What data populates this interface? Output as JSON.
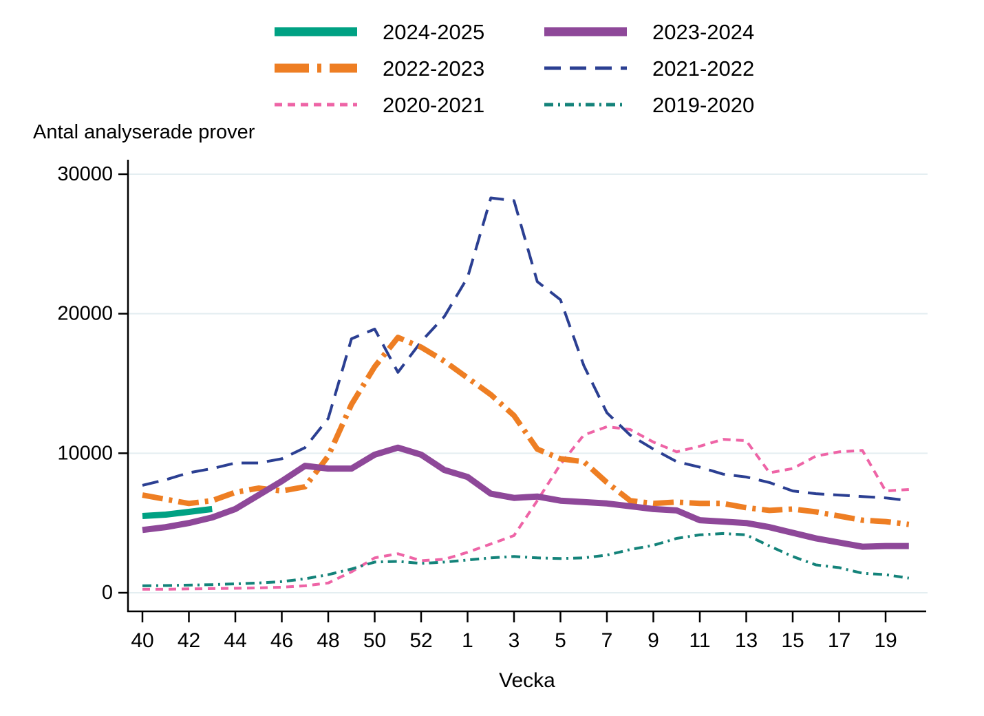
{
  "title": "Antal analyserade prover",
  "xlabel": "Vecka",
  "colors": {
    "axis": "#000000",
    "grid": "#e4eef1",
    "background": "#ffffff"
  },
  "chart_data": {
    "type": "line",
    "title": "Antal analyserade prover",
    "xlabel": "Vecka",
    "ylabel": "Antal analyserade prover",
    "ylim": [
      0,
      30000
    ],
    "y_ticks": [
      0,
      10000,
      20000,
      30000
    ],
    "x_tick_labels": [
      "40",
      "42",
      "44",
      "46",
      "48",
      "50",
      "52",
      "1",
      "3",
      "5",
      "7",
      "9",
      "11",
      "13",
      "15",
      "17",
      "19"
    ],
    "grid": "horizontal",
    "legend_position": "top",
    "x_categories": [
      "40",
      "41",
      "42",
      "43",
      "44",
      "45",
      "46",
      "47",
      "48",
      "49",
      "50",
      "51",
      "52",
      "53",
      "1",
      "2",
      "3",
      "4",
      "5",
      "6",
      "7",
      "8",
      "9",
      "10",
      "11",
      "12",
      "13",
      "14",
      "15",
      "16",
      "17",
      "18",
      "19",
      "20"
    ],
    "series": [
      {
        "name": "2024-2025",
        "color": "#00a183",
        "style": "solid",
        "width": 9,
        "values": [
          5500,
          5600,
          5800,
          6000,
          null,
          null,
          null,
          null,
          null,
          null,
          null,
          null,
          null,
          null,
          null,
          null,
          null,
          null,
          null,
          null,
          null,
          null,
          null,
          null,
          null,
          null,
          null,
          null,
          null,
          null,
          null,
          null,
          null,
          null
        ]
      },
      {
        "name": "2023-2024",
        "color": "#8e4899",
        "style": "solid",
        "width": 9,
        "values": [
          4500,
          4700,
          5000,
          5400,
          6000,
          7000,
          8000,
          9100,
          8900,
          8900,
          9900,
          10400,
          9900,
          8800,
          8300,
          7100,
          6800,
          6900,
          6600,
          6500,
          6400,
          6200,
          6000,
          5900,
          5200,
          5100,
          5000,
          4700,
          4300,
          3900,
          3600,
          3300,
          3350,
          3350
        ]
      },
      {
        "name": "2022-2023",
        "color": "#ee7e23",
        "style": "dash-dot",
        "width": 8,
        "values": [
          7000,
          6700,
          6400,
          6600,
          7200,
          7500,
          7300,
          7600,
          9800,
          13500,
          16200,
          18300,
          17600,
          16600,
          15400,
          14200,
          12700,
          10300,
          9600,
          9400,
          7900,
          6600,
          6400,
          6500,
          6400,
          6400,
          6100,
          5900,
          6000,
          5800,
          5500,
          5200,
          5100,
          4900
        ]
      },
      {
        "name": "2021-2022",
        "color": "#2b3f92",
        "style": "dashed",
        "width": 4,
        "values": [
          7700,
          8100,
          8600,
          8900,
          9300,
          9300,
          9600,
          10400,
          12500,
          18200,
          18900,
          15800,
          18000,
          19800,
          22600,
          28300,
          28100,
          22300,
          21000,
          16300,
          12900,
          11300,
          10300,
          9400,
          9000,
          8500,
          8300,
          7900,
          7300,
          7100,
          7000,
          6900,
          6800,
          6600
        ]
      },
      {
        "name": "2020-2021",
        "color": "#ee64a6",
        "style": "short-dash",
        "width": 4,
        "values": [
          250,
          250,
          280,
          300,
          320,
          350,
          400,
          500,
          700,
          1500,
          2500,
          2800,
          2300,
          2400,
          2900,
          3500,
          4100,
          6600,
          9200,
          11300,
          11900,
          11700,
          10800,
          10100,
          10500,
          11000,
          10900,
          8600,
          8900,
          9800,
          10100,
          10200,
          7300,
          7400
        ]
      },
      {
        "name": "2019-2020",
        "color": "#14837a",
        "style": "dash-dot-thin",
        "width": 4,
        "values": [
          500,
          520,
          550,
          580,
          640,
          700,
          800,
          1000,
          1300,
          1700,
          2200,
          2250,
          2100,
          2200,
          2350,
          2500,
          2600,
          2500,
          2450,
          2500,
          2700,
          3100,
          3400,
          3900,
          4150,
          4250,
          4150,
          3350,
          2600,
          2000,
          1800,
          1400,
          1300,
          1050
        ]
      }
    ]
  }
}
